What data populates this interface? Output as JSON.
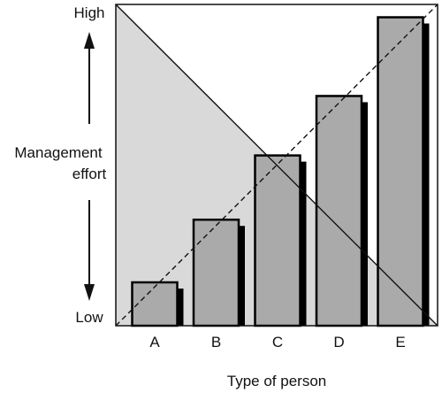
{
  "chart_data": {
    "type": "bar",
    "categories": [
      "A",
      "B",
      "C",
      "D",
      "E"
    ],
    "values": [
      1.35,
      3.3,
      5.3,
      7.15,
      9.6
    ],
    "ylim": [
      0,
      10
    ],
    "xlabel": "Type of person",
    "ylabel": [
      "Management",
      "effort"
    ],
    "y_high_label": "High",
    "y_low_label": "Low",
    "grid": false,
    "legend": "none",
    "reference_lines": [
      {
        "style": "solid",
        "from": [
          0,
          10
        ],
        "to": [
          10,
          0
        ]
      },
      {
        "style": "dashed",
        "from": [
          0,
          0
        ],
        "to": [
          10,
          10
        ]
      }
    ],
    "colors": {
      "bar_fill": "#aaaaaa",
      "bar_shadow": "#000000",
      "triangle_fill": "#d9d9d9",
      "axes": "#111111"
    }
  }
}
